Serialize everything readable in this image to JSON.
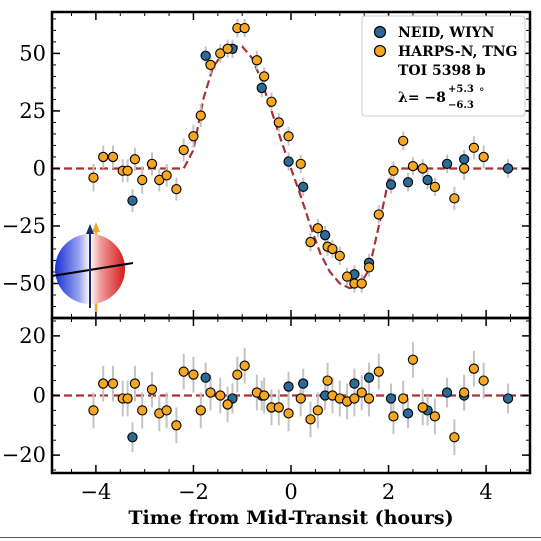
{
  "chart_data": {
    "type": "scatter",
    "xlabel": "Time from Mid-Transit (hours)",
    "xlim": [
      -4.9,
      4.9
    ],
    "xticks": [
      "−4",
      "−2",
      "0",
      "2",
      "4"
    ],
    "legend": {
      "placement": "top-right",
      "entries": [
        "NEID, WIYN",
        "HARPS-N, TNG"
      ],
      "annotation_line1": "TOI 5398 b",
      "annotation_lambda_prefix": "λ= −8",
      "annotation_lambda_upper": "+5.3",
      "annotation_lambda_lower": "−6.3",
      "annotation_lambda_unit": "°"
    },
    "colors": {
      "NEID": "#2c6b97",
      "HARPS": "#f5a623",
      "model": "#a83232",
      "errorbar": "#c4c4c4"
    },
    "top_panel": {
      "ylim": [
        -65,
        68
      ],
      "yticks": [
        "50",
        "25",
        "0",
        "−25",
        "−50"
      ],
      "yticks_values": [
        50,
        25,
        0,
        -25,
        -50
      ],
      "model_curve": [
        [
          -4.9,
          0
        ],
        [
          -2.2,
          0
        ],
        [
          -2.0,
          8
        ],
        [
          -1.8,
          30
        ],
        [
          -1.6,
          44
        ],
        [
          -1.4,
          50
        ],
        [
          -1.2,
          53
        ],
        [
          -1.0,
          53
        ],
        [
          -0.8,
          48
        ],
        [
          -0.6,
          38
        ],
        [
          -0.4,
          25
        ],
        [
          -0.2,
          12
        ],
        [
          0,
          0
        ],
        [
          0.2,
          -12
        ],
        [
          0.4,
          -25
        ],
        [
          0.6,
          -37
        ],
        [
          0.8,
          -45
        ],
        [
          1.0,
          -50
        ],
        [
          1.2,
          -52
        ],
        [
          1.4,
          -51
        ],
        [
          1.6,
          -44
        ],
        [
          1.8,
          -25
        ],
        [
          2.0,
          -5
        ],
        [
          2.2,
          0
        ],
        [
          4.9,
          0
        ]
      ],
      "series": [
        {
          "name": "NEID, WIYN",
          "points": [
            [
              -3.25,
              -14,
              5
            ],
            [
              -1.75,
              49,
              4
            ],
            [
              -1.2,
              52,
              4
            ],
            [
              -0.6,
              35,
              4
            ],
            [
              -0.05,
              3,
              4
            ],
            [
              0.25,
              -8,
              4
            ],
            [
              0.7,
              -29,
              4
            ],
            [
              1.3,
              -46,
              4
            ],
            [
              1.6,
              -41,
              4
            ],
            [
              2.05,
              -7,
              4
            ],
            [
              2.4,
              -6,
              4
            ],
            [
              2.8,
              -5,
              4
            ],
            [
              3.2,
              2,
              4
            ],
            [
              3.55,
              4,
              4
            ],
            [
              4.45,
              0,
              4
            ]
          ]
        },
        {
          "name": "HARPS-N, TNG",
          "points": [
            [
              -4.05,
              -4,
              6
            ],
            [
              -3.85,
              5,
              5
            ],
            [
              -3.65,
              5,
              5
            ],
            [
              -3.45,
              -1,
              5
            ],
            [
              -3.35,
              -1,
              5
            ],
            [
              -3.2,
              4,
              5
            ],
            [
              -3.05,
              -5,
              6
            ],
            [
              -2.85,
              2,
              5
            ],
            [
              -2.7,
              -5,
              5
            ],
            [
              -2.55,
              -3,
              5
            ],
            [
              -2.35,
              -9,
              5
            ],
            [
              -2.2,
              8,
              5
            ],
            [
              -2.0,
              14,
              5
            ],
            [
              -1.85,
              23,
              5
            ],
            [
              -1.65,
              45,
              4
            ],
            [
              -1.45,
              50,
              4
            ],
            [
              -1.3,
              52,
              4
            ],
            [
              -1.1,
              61,
              4
            ],
            [
              -0.95,
              61,
              4
            ],
            [
              -0.7,
              47,
              4
            ],
            [
              -0.55,
              40,
              4
            ],
            [
              -0.4,
              29,
              4
            ],
            [
              -0.25,
              20,
              4
            ],
            [
              -0.05,
              14,
              4
            ],
            [
              0.2,
              2,
              4
            ],
            [
              0.4,
              -32,
              4
            ],
            [
              0.55,
              -26,
              4
            ],
            [
              0.75,
              -34,
              4
            ],
            [
              0.85,
              -35,
              4
            ],
            [
              1.0,
              -38,
              4
            ],
            [
              1.15,
              -47,
              4
            ],
            [
              1.3,
              -50,
              4
            ],
            [
              1.45,
              -50,
              4
            ],
            [
              1.6,
              -43,
              4
            ],
            [
              1.8,
              -20,
              4
            ],
            [
              2.1,
              -1,
              4
            ],
            [
              2.3,
              12,
              4
            ],
            [
              2.5,
              1,
              4
            ],
            [
              2.7,
              0,
              4
            ],
            [
              2.95,
              -8,
              4
            ],
            [
              3.35,
              -13,
              5
            ],
            [
              3.55,
              0,
              5
            ],
            [
              3.75,
              9,
              5
            ],
            [
              3.95,
              5,
              5
            ]
          ]
        }
      ]
    },
    "bottom_panel": {
      "ylim": [
        -26,
        26
      ],
      "yticks": [
        "20",
        "0",
        "−20"
      ],
      "yticks_values": [
        20,
        0,
        -20
      ],
      "series": [
        {
          "name": "NEID, WIYN",
          "points": [
            [
              -3.25,
              -14,
              5
            ],
            [
              -1.75,
              6,
              5
            ],
            [
              -1.2,
              -1,
              5
            ],
            [
              -0.6,
              0,
              5
            ],
            [
              -0.05,
              3,
              5
            ],
            [
              0.25,
              4,
              5
            ],
            [
              0.7,
              0,
              5
            ],
            [
              1.3,
              4,
              5
            ],
            [
              1.6,
              6,
              5
            ],
            [
              2.05,
              -1,
              5
            ],
            [
              2.4,
              -6,
              5
            ],
            [
              2.8,
              -5,
              5
            ],
            [
              3.2,
              1,
              5
            ],
            [
              3.55,
              0,
              5
            ],
            [
              4.45,
              -1,
              5
            ]
          ]
        },
        {
          "name": "HARPS-N, TNG",
          "points": [
            [
              -4.05,
              -5,
              6
            ],
            [
              -3.85,
              4,
              6
            ],
            [
              -3.65,
              4,
              6
            ],
            [
              -3.45,
              -1,
              6
            ],
            [
              -3.35,
              -1,
              6
            ],
            [
              -3.2,
              4,
              6
            ],
            [
              -3.05,
              -5,
              6
            ],
            [
              -2.85,
              2,
              6
            ],
            [
              -2.7,
              -6,
              6
            ],
            [
              -2.55,
              -5,
              6
            ],
            [
              -2.35,
              -10,
              6
            ],
            [
              -2.2,
              8,
              6
            ],
            [
              -2.0,
              7,
              6
            ],
            [
              -1.85,
              -5,
              6
            ],
            [
              -1.65,
              1,
              6
            ],
            [
              -1.45,
              0,
              6
            ],
            [
              -1.3,
              -3,
              6
            ],
            [
              -1.1,
              7,
              6
            ],
            [
              -0.95,
              10,
              6
            ],
            [
              -0.7,
              1,
              6
            ],
            [
              -0.55,
              0,
              6
            ],
            [
              -0.4,
              -4,
              6
            ],
            [
              -0.25,
              -4,
              6
            ],
            [
              -0.05,
              -6,
              6
            ],
            [
              0.2,
              -1,
              6
            ],
            [
              0.4,
              -8,
              6
            ],
            [
              0.55,
              -5,
              6
            ],
            [
              0.75,
              5,
              6
            ],
            [
              0.85,
              0,
              6
            ],
            [
              1.0,
              -1,
              6
            ],
            [
              1.15,
              -2,
              6
            ],
            [
              1.3,
              -1,
              6
            ],
            [
              1.45,
              1,
              6
            ],
            [
              1.6,
              -1,
              6
            ],
            [
              1.8,
              8,
              6
            ],
            [
              2.1,
              -7,
              6
            ],
            [
              2.3,
              -1,
              6
            ],
            [
              2.5,
              12,
              6
            ],
            [
              2.7,
              -4,
              6
            ],
            [
              2.95,
              -7,
              6
            ],
            [
              3.35,
              -14,
              6
            ],
            [
              3.55,
              1,
              6
            ],
            [
              3.75,
              9,
              6
            ],
            [
              3.95,
              5,
              6
            ]
          ]
        }
      ]
    }
  }
}
